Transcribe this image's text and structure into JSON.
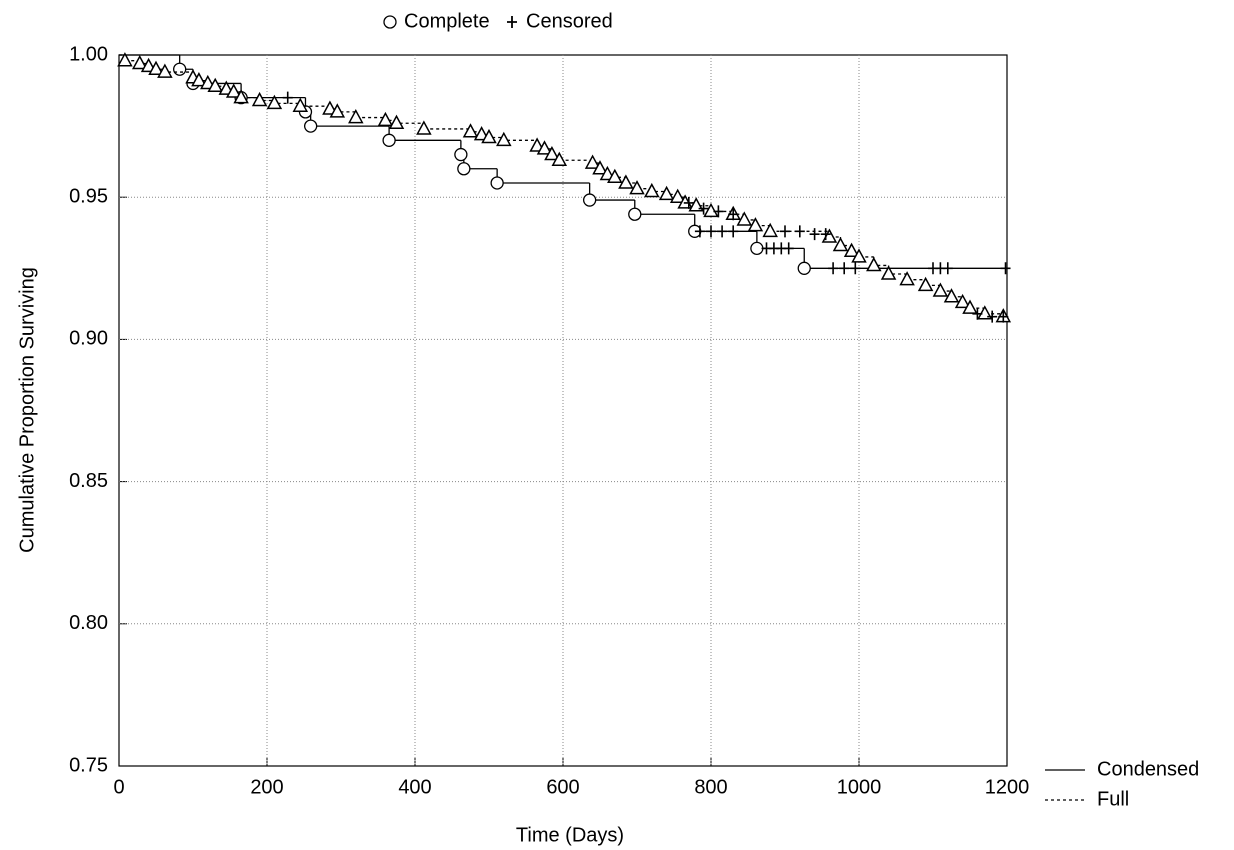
{
  "chart_data": {
    "type": "survival",
    "x_label": "Time (Days)",
    "y_label": "Cumulative Proportion Surviving",
    "marker_legend": [
      {
        "name": "Complete",
        "marker": "circle"
      },
      {
        "name": "Censored",
        "marker": "plus"
      }
    ],
    "xlim": [
      0,
      1200
    ],
    "xticks": [
      0,
      200,
      400,
      600,
      800,
      1000,
      1200
    ],
    "ylim": [
      0.75,
      1.0
    ],
    "yticks": [
      0.75,
      {
        "value": 0.8,
        "label": "0.80"
      },
      0.85,
      {
        "value": 0.9,
        "label": "0.90"
      },
      0.95,
      {
        "value": 1.0,
        "label": "1.00"
      }
    ],
    "grid": true,
    "series": [
      {
        "name": "Condensed",
        "color": "#000000",
        "line": "solid",
        "marker": "circle",
        "x": [
          0,
          82,
          100,
          165,
          252,
          259,
          365,
          462,
          466,
          511,
          636,
          697,
          778,
          862,
          926
        ],
        "values": [
          1.0,
          0.995,
          0.99,
          0.985,
          0.98,
          0.975,
          0.97,
          0.965,
          0.96,
          0.955,
          0.949,
          0.944,
          0.938,
          0.932,
          0.925
        ],
        "censored_x": [
          228,
          785,
          800,
          815,
          830,
          875,
          885,
          895,
          905,
          965,
          980,
          995,
          1100,
          1110,
          1120,
          1198
        ],
        "censored_values": [
          0.985,
          0.938,
          0.938,
          0.938,
          0.938,
          0.932,
          0.932,
          0.932,
          0.932,
          0.925,
          0.925,
          0.925,
          0.925,
          0.925,
          0.925,
          0.925
        ]
      },
      {
        "name": "Full",
        "color": "#000000",
        "line": "dotted",
        "marker": "triangle",
        "x": [
          0,
          8,
          28,
          40,
          50,
          62,
          100,
          108,
          120,
          130,
          145,
          155,
          165,
          190,
          210,
          245,
          285,
          295,
          320,
          360,
          375,
          412,
          475,
          490,
          500,
          520,
          565,
          575,
          585,
          595,
          640,
          650,
          660,
          670,
          685,
          700,
          720,
          740,
          755,
          765,
          780,
          800,
          830,
          845,
          860,
          880,
          960,
          975,
          990,
          1000,
          1020,
          1040,
          1065,
          1090,
          1110,
          1125,
          1140,
          1150,
          1170,
          1195
        ],
        "values": [
          1.0,
          0.998,
          0.997,
          0.996,
          0.995,
          0.994,
          0.992,
          0.991,
          0.99,
          0.989,
          0.988,
          0.987,
          0.985,
          0.984,
          0.983,
          0.982,
          0.981,
          0.98,
          0.978,
          0.977,
          0.976,
          0.974,
          0.973,
          0.972,
          0.971,
          0.97,
          0.968,
          0.967,
          0.965,
          0.963,
          0.962,
          0.96,
          0.958,
          0.957,
          0.955,
          0.953,
          0.952,
          0.951,
          0.95,
          0.948,
          0.947,
          0.945,
          0.944,
          0.942,
          0.94,
          0.938,
          0.936,
          0.933,
          0.931,
          0.929,
          0.926,
          0.923,
          0.921,
          0.919,
          0.917,
          0.915,
          0.913,
          0.911,
          0.909,
          0.908
        ],
        "censored_x": [
          770,
          790,
          810,
          830,
          900,
          920,
          940,
          955,
          1160,
          1180,
          1195
        ],
        "censored_values": [
          0.948,
          0.946,
          0.945,
          0.944,
          0.938,
          0.938,
          0.937,
          0.937,
          0.909,
          0.908,
          0.908
        ]
      }
    ]
  }
}
